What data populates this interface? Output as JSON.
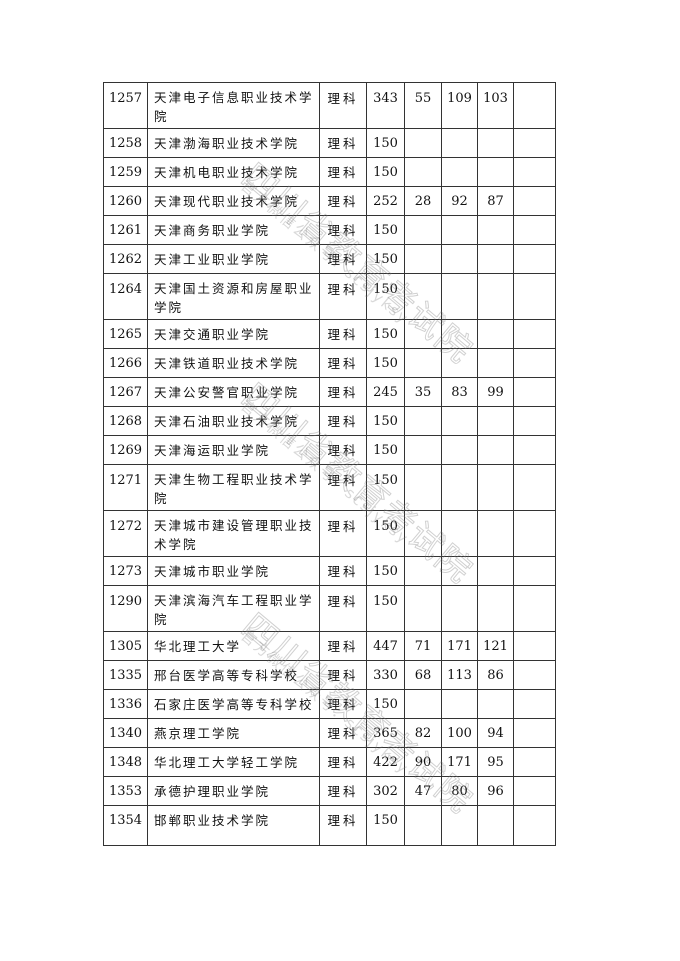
{
  "table": {
    "rows": [
      {
        "code": "1257",
        "name": "天津电子信息职业技术学院",
        "subject": "理科",
        "v1": "343",
        "v2": "55",
        "v3": "109",
        "v4": "103",
        "tall": true
      },
      {
        "code": "1258",
        "name": "天津渤海职业技术学院",
        "subject": "理科",
        "v1": "150",
        "v2": "",
        "v3": "",
        "v4": ""
      },
      {
        "code": "1259",
        "name": "天津机电职业技术学院",
        "subject": "理科",
        "v1": "150",
        "v2": "",
        "v3": "",
        "v4": ""
      },
      {
        "code": "1260",
        "name": "天津现代职业技术学院",
        "subject": "理科",
        "v1": "252",
        "v2": "28",
        "v3": "92",
        "v4": "87"
      },
      {
        "code": "1261",
        "name": "天津商务职业学院",
        "subject": "理科",
        "v1": "150",
        "v2": "",
        "v3": "",
        "v4": ""
      },
      {
        "code": "1262",
        "name": "天津工业职业学院",
        "subject": "理科",
        "v1": "150",
        "v2": "",
        "v3": "",
        "v4": ""
      },
      {
        "code": "1264",
        "name": "天津国土资源和房屋职业学院",
        "subject": "理科",
        "v1": "150",
        "v2": "",
        "v3": "",
        "v4": "",
        "tall": true
      },
      {
        "code": "1265",
        "name": "天津交通职业学院",
        "subject": "理科",
        "v1": "150",
        "v2": "",
        "v3": "",
        "v4": ""
      },
      {
        "code": "1266",
        "name": "天津铁道职业技术学院",
        "subject": "理科",
        "v1": "150",
        "v2": "",
        "v3": "",
        "v4": ""
      },
      {
        "code": "1267",
        "name": "天津公安警官职业学院",
        "subject": "理科",
        "v1": "245",
        "v2": "35",
        "v3": "83",
        "v4": "99"
      },
      {
        "code": "1268",
        "name": "天津石油职业技术学院",
        "subject": "理科",
        "v1": "150",
        "v2": "",
        "v3": "",
        "v4": ""
      },
      {
        "code": "1269",
        "name": "天津海运职业学院",
        "subject": "理科",
        "v1": "150",
        "v2": "",
        "v3": "",
        "v4": ""
      },
      {
        "code": "1271",
        "name": "天津生物工程职业技术学院",
        "subject": "理科",
        "v1": "150",
        "v2": "",
        "v3": "",
        "v4": "",
        "tall": true
      },
      {
        "code": "1272",
        "name": "天津城市建设管理职业技术学院",
        "subject": "理科",
        "v1": "150",
        "v2": "",
        "v3": "",
        "v4": "",
        "tall": true
      },
      {
        "code": "1273",
        "name": "天津城市职业学院",
        "subject": "理科",
        "v1": "150",
        "v2": "",
        "v3": "",
        "v4": ""
      },
      {
        "code": "1290",
        "name": "天津滨海汽车工程职业学院",
        "subject": "理科",
        "v1": "150",
        "v2": "",
        "v3": "",
        "v4": "",
        "tall": true
      },
      {
        "code": "1305",
        "name": "华北理工大学",
        "subject": "理科",
        "v1": "447",
        "v2": "71",
        "v3": "171",
        "v4": "121"
      },
      {
        "code": "1335",
        "name": "邢台医学高等专科学校",
        "subject": "理科",
        "v1": "330",
        "v2": "68",
        "v3": "113",
        "v4": "86"
      },
      {
        "code": "1336",
        "name": "石家庄医学高等专科学校",
        "subject": "理科",
        "v1": "150",
        "v2": "",
        "v3": "",
        "v4": ""
      },
      {
        "code": "1340",
        "name": "燕京理工学院",
        "subject": "理科",
        "v1": "365",
        "v2": "82",
        "v3": "100",
        "v4": "94"
      },
      {
        "code": "1348",
        "name": "华北理工大学轻工学院",
        "subject": "理科",
        "v1": "422",
        "v2": "90",
        "v3": "171",
        "v4": "95"
      },
      {
        "code": "1353",
        "name": "承德护理职业学院",
        "subject": "理科",
        "v1": "302",
        "v2": "47",
        "v3": "80",
        "v4": "96"
      },
      {
        "code": "1354",
        "name": "邯郸职业技术学院",
        "subject": "理科",
        "v1": "150",
        "v2": "",
        "v3": "",
        "v4": "",
        "last": true
      }
    ]
  },
  "watermark": {
    "main": "四川省教育考试院",
    "sub": "官方微信公众号：scsjyksy"
  }
}
